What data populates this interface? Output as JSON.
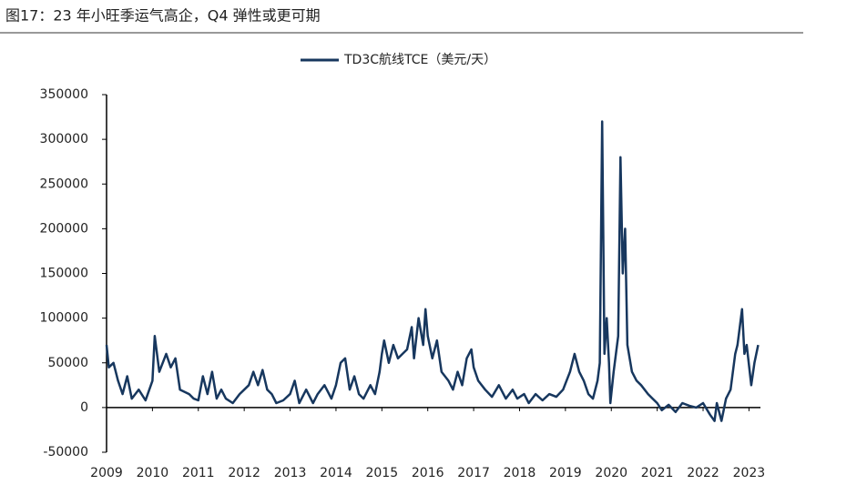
{
  "chart_data": {
    "type": "line",
    "title": "图17：23 年小旺季运气高企，Q4 弹性或更可期",
    "series": [
      {
        "name": "TD3C航线TCE（美元/天）",
        "color": "#17375e",
        "x": [
          2009.0,
          2009.05,
          2009.15,
          2009.25,
          2009.35,
          2009.45,
          2009.55,
          2009.7,
          2009.85,
          2010.0,
          2010.05,
          2010.15,
          2010.3,
          2010.4,
          2010.5,
          2010.6,
          2010.8,
          2010.9,
          2011.0,
          2011.1,
          2011.2,
          2011.3,
          2011.4,
          2011.5,
          2011.6,
          2011.75,
          2011.9,
          2012.0,
          2012.1,
          2012.2,
          2012.3,
          2012.4,
          2012.5,
          2012.6,
          2012.7,
          2012.85,
          2013.0,
          2013.1,
          2013.2,
          2013.35,
          2013.5,
          2013.6,
          2013.75,
          2013.9,
          2014.0,
          2014.1,
          2014.2,
          2014.3,
          2014.4,
          2014.5,
          2014.6,
          2014.75,
          2014.85,
          2014.95,
          2015.0,
          2015.05,
          2015.15,
          2015.25,
          2015.35,
          2015.45,
          2015.55,
          2015.65,
          2015.7,
          2015.8,
          2015.9,
          2015.95,
          2016.0,
          2016.1,
          2016.2,
          2016.3,
          2016.45,
          2016.55,
          2016.65,
          2016.75,
          2016.85,
          2016.95,
          2017.0,
          2017.1,
          2017.25,
          2017.4,
          2017.55,
          2017.7,
          2017.85,
          2017.95,
          2018.1,
          2018.2,
          2018.35,
          2018.5,
          2018.65,
          2018.8,
          2018.95,
          2019.1,
          2019.2,
          2019.3,
          2019.4,
          2019.5,
          2019.6,
          2019.7,
          2019.75,
          2019.8,
          2019.85,
          2019.9,
          2019.95,
          2019.98,
          2020.05,
          2020.15,
          2020.2,
          2020.25,
          2020.3,
          2020.35,
          2020.45,
          2020.55,
          2020.65,
          2020.8,
          2020.9,
          2021.0,
          2021.1,
          2021.25,
          2021.4,
          2021.55,
          2021.7,
          2021.85,
          2022.0,
          2022.15,
          2022.25,
          2022.3,
          2022.4,
          2022.5,
          2022.6,
          2022.7,
          2022.75,
          2022.85,
          2022.9,
          2022.95,
          2023.05,
          2023.12,
          2023.2
        ],
        "values": [
          70000,
          45000,
          50000,
          30000,
          15000,
          35000,
          10000,
          20000,
          8000,
          30000,
          80000,
          40000,
          60000,
          45000,
          55000,
          20000,
          15000,
          10000,
          8000,
          35000,
          15000,
          40000,
          10000,
          20000,
          10000,
          5000,
          15000,
          20000,
          25000,
          40000,
          25000,
          42000,
          20000,
          15000,
          5000,
          8000,
          15000,
          30000,
          5000,
          20000,
          5000,
          15000,
          25000,
          10000,
          25000,
          50000,
          55000,
          20000,
          35000,
          15000,
          10000,
          25000,
          15000,
          40000,
          60000,
          75000,
          50000,
          70000,
          55000,
          60000,
          65000,
          90000,
          55000,
          100000,
          70000,
          110000,
          80000,
          55000,
          75000,
          40000,
          30000,
          20000,
          40000,
          25000,
          55000,
          65000,
          45000,
          30000,
          20000,
          12000,
          25000,
          10000,
          20000,
          10000,
          15000,
          5000,
          15000,
          8000,
          15000,
          12000,
          20000,
          40000,
          60000,
          40000,
          30000,
          15000,
          10000,
          30000,
          50000,
          320000,
          60000,
          100000,
          50000,
          5000,
          40000,
          80000,
          280000,
          150000,
          200000,
          70000,
          40000,
          30000,
          25000,
          15000,
          10000,
          5000,
          -3000,
          3000,
          -5000,
          5000,
          2000,
          0,
          5000,
          -8000,
          -15000,
          5000,
          -15000,
          10000,
          20000,
          60000,
          70000,
          110000,
          60000,
          70000,
          25000,
          50000,
          70000
        ]
      }
    ],
    "xlim": [
      2009,
      2023.25
    ],
    "xticks": [
      2009,
      2010,
      2011,
      2012,
      2013,
      2014,
      2015,
      2016,
      2017,
      2018,
      2019,
      2020,
      2021,
      2022,
      2023
    ],
    "ylim": [
      -50000,
      350000
    ],
    "yticks": [
      -50000,
      0,
      50000,
      100000,
      150000,
      200000,
      250000,
      300000,
      350000
    ],
    "legend": "top"
  }
}
